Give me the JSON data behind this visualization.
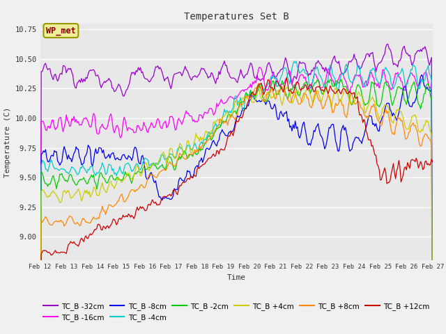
{
  "title": "Temperatures Set B",
  "xlabel": "Time",
  "ylabel": "Temperature (C)",
  "ylim": [
    8.8,
    10.8
  ],
  "xlim": [
    0,
    360
  ],
  "fig_bg_color": "#f0f0f0",
  "plot_bg_color": "#e8e8e8",
  "grid_color": "#ffffff",
  "series": [
    {
      "label": "TC_B -32cm",
      "color": "#9900cc"
    },
    {
      "label": "TC_B -16cm",
      "color": "#ff00ff"
    },
    {
      "label": "TC_B -8cm",
      "color": "#0000ee"
    },
    {
      "label": "TC_B -4cm",
      "color": "#00cccc"
    },
    {
      "label": "TC_B -2cm",
      "color": "#00cc00"
    },
    {
      "label": "TC_B +4cm",
      "color": "#cccc00"
    },
    {
      "label": "TC_B +8cm",
      "color": "#ff8800"
    },
    {
      "label": "TC_B +12cm",
      "color": "#cc0000"
    }
  ],
  "xtick_labels": [
    "Feb 12",
    "Feb 13",
    "Feb 14",
    "Feb 15",
    "Feb 16",
    "Feb 17",
    "Feb 18",
    "Feb 19",
    "Feb 20",
    "Feb 21",
    "Feb 22",
    "Feb 23",
    "Feb 24",
    "Feb 25",
    "Feb 26",
    "Feb 27"
  ],
  "xtick_positions": [
    0,
    24,
    48,
    72,
    96,
    120,
    144,
    168,
    192,
    216,
    240,
    264,
    288,
    312,
    336,
    360
  ],
  "wp_met_box_color": "#eeee99",
  "wp_met_text_color": "#880000"
}
